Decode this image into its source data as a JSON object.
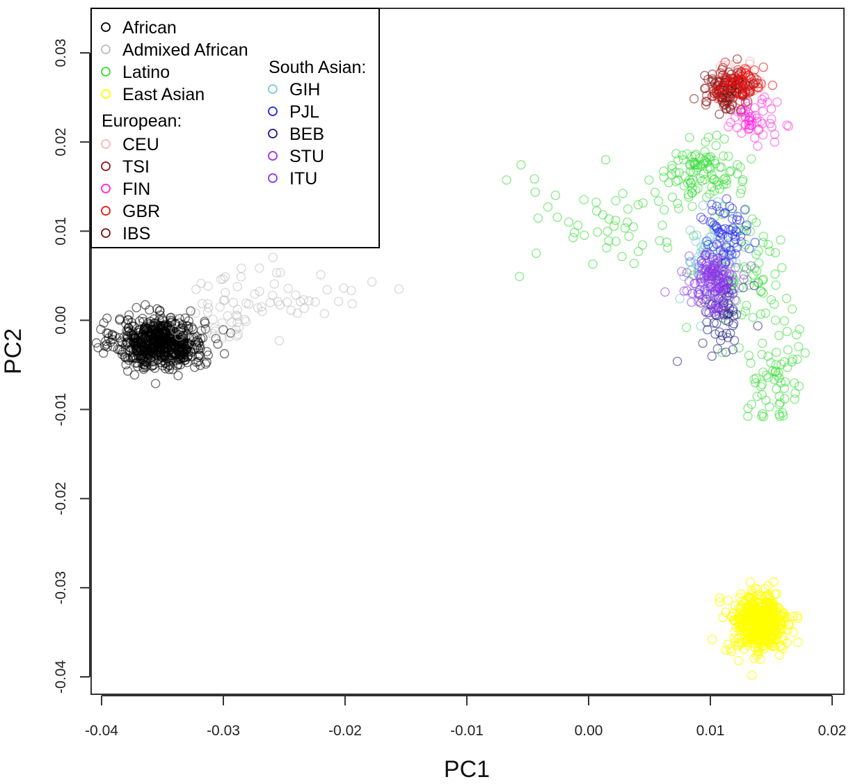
{
  "chart_data": {
    "type": "scatter",
    "title": "",
    "xlabel": "PC1",
    "ylabel": "PC2",
    "xlim": [
      -0.04,
      0.02
    ],
    "ylim": [
      -0.04,
      0.03
    ],
    "x_ticks": [
      "-0.04",
      "-0.03",
      "-0.02",
      "-0.01",
      "0.00",
      "0.01",
      "0.02"
    ],
    "y_ticks": [
      "-0.04",
      "-0.03",
      "-0.02",
      "-0.01",
      "0.00",
      "0.01",
      "0.02",
      "0.03"
    ],
    "grid": false,
    "marker": "open-circle",
    "legend": {
      "placement": "top-left",
      "columns": [
        {
          "entries": [
            {
              "label": "African",
              "color": "#000000"
            },
            {
              "label": "Admixed African",
              "color": "#bdbdbd"
            },
            {
              "label": "Latino",
              "color": "#33dd33"
            },
            {
              "label": "East Asian",
              "color": "#ffff00"
            },
            {
              "header": "European:"
            },
            {
              "label": "CEU",
              "color": "#f4b6b6"
            },
            {
              "label": "TSI",
              "color": "#8b1a1a"
            },
            {
              "label": "FIN",
              "color": "#ff22dd"
            },
            {
              "label": "GBR",
              "color": "#ee1111"
            },
            {
              "label": "IBS",
              "color": "#7a0e0e"
            }
          ]
        },
        {
          "entries": [
            {
              "header": "South Asian:"
            },
            {
              "label": "GIH",
              "color": "#7fc8e0"
            },
            {
              "label": "PJL",
              "color": "#2222ee"
            },
            {
              "label": "BEB",
              "color": "#1a1a80"
            },
            {
              "label": "STU",
              "color": "#9933dd"
            },
            {
              "label": "ITU",
              "color": "#8833ee"
            }
          ]
        }
      ]
    },
    "series": [
      {
        "name": "African",
        "color": "#000000",
        "opacity": 0.55,
        "count": 650,
        "clusters": [
          {
            "x": -0.0352,
            "y": -0.0025,
            "sx": 0.0018,
            "sy": 0.0014,
            "w": 1
          }
        ]
      },
      {
        "name": "Admixed African",
        "color": "#bdbdbd",
        "opacity": 0.55,
        "count": 80,
        "clusters": [
          {
            "x": -0.0305,
            "y": -0.0005,
            "sx": 0.0022,
            "sy": 0.0015,
            "w": 0.35
          },
          {
            "x": -0.0255,
            "y": 0.003,
            "sx": 0.0035,
            "sy": 0.0018,
            "w": 0.65
          }
        ]
      },
      {
        "name": "CEU",
        "color": "#f4b6b6",
        "opacity": 0.6,
        "count": 45,
        "clusters": [
          {
            "x": 0.0122,
            "y": 0.0268,
            "sx": 0.0012,
            "sy": 0.0011,
            "w": 1
          }
        ]
      },
      {
        "name": "TSI",
        "color": "#8b1a1a",
        "opacity": 0.6,
        "count": 60,
        "clusters": [
          {
            "x": 0.0112,
            "y": 0.0255,
            "sx": 0.0011,
            "sy": 0.0011,
            "w": 1
          }
        ]
      },
      {
        "name": "IBS",
        "color": "#7a0e0e",
        "opacity": 0.6,
        "count": 60,
        "clusters": [
          {
            "x": 0.0118,
            "y": 0.0262,
            "sx": 0.0011,
            "sy": 0.0011,
            "w": 1
          }
        ]
      },
      {
        "name": "GBR",
        "color": "#ee1111",
        "opacity": 0.6,
        "count": 60,
        "clusters": [
          {
            "x": 0.0125,
            "y": 0.0265,
            "sx": 0.001,
            "sy": 0.001,
            "w": 1
          }
        ]
      },
      {
        "name": "FIN",
        "color": "#ff22dd",
        "opacity": 0.5,
        "count": 55,
        "clusters": [
          {
            "x": 0.0135,
            "y": 0.0225,
            "sx": 0.001,
            "sy": 0.0011,
            "w": 1
          }
        ]
      },
      {
        "name": "Latino",
        "color": "#33dd33",
        "opacity": 0.55,
        "count": 300,
        "clusters": [
          {
            "x": 0.0095,
            "y": 0.0165,
            "sx": 0.0015,
            "sy": 0.0018,
            "w": 0.35
          },
          {
            "x": 0.0125,
            "y": 0.006,
            "sx": 0.0018,
            "sy": 0.004,
            "w": 0.25
          },
          {
            "x": 0.0155,
            "y": -0.006,
            "sx": 0.0012,
            "sy": 0.003,
            "w": 0.22
          },
          {
            "x": 0.002,
            "y": 0.011,
            "sx": 0.0045,
            "sy": 0.003,
            "w": 0.18
          }
        ]
      },
      {
        "name": "GIH",
        "color": "#7fc8e0",
        "opacity": 0.6,
        "count": 60,
        "clusters": [
          {
            "x": 0.0098,
            "y": 0.006,
            "sx": 0.0012,
            "sy": 0.0022,
            "w": 1
          }
        ]
      },
      {
        "name": "PJL",
        "color": "#2222ee",
        "opacity": 0.55,
        "count": 70,
        "clusters": [
          {
            "x": 0.0112,
            "y": 0.0095,
            "sx": 0.001,
            "sy": 0.002,
            "w": 1
          }
        ]
      },
      {
        "name": "BEB",
        "color": "#1a1a80",
        "opacity": 0.55,
        "count": 60,
        "clusters": [
          {
            "x": 0.0112,
            "y": 0.001,
            "sx": 0.001,
            "sy": 0.002,
            "w": 1
          }
        ]
      },
      {
        "name": "STU",
        "color": "#9933dd",
        "opacity": 0.55,
        "count": 70,
        "clusters": [
          {
            "x": 0.01,
            "y": 0.0045,
            "sx": 0.0009,
            "sy": 0.0015,
            "w": 1
          }
        ]
      },
      {
        "name": "ITU",
        "color": "#8833ee",
        "opacity": 0.55,
        "count": 70,
        "clusters": [
          {
            "x": 0.0105,
            "y": 0.004,
            "sx": 0.0009,
            "sy": 0.0015,
            "w": 1
          }
        ]
      },
      {
        "name": "East Asian",
        "color": "#ffff00",
        "opacity": 0.7,
        "count": 450,
        "clusters": [
          {
            "x": 0.014,
            "y": -0.034,
            "sx": 0.0012,
            "sy": 0.0018,
            "w": 1
          }
        ]
      }
    ]
  }
}
